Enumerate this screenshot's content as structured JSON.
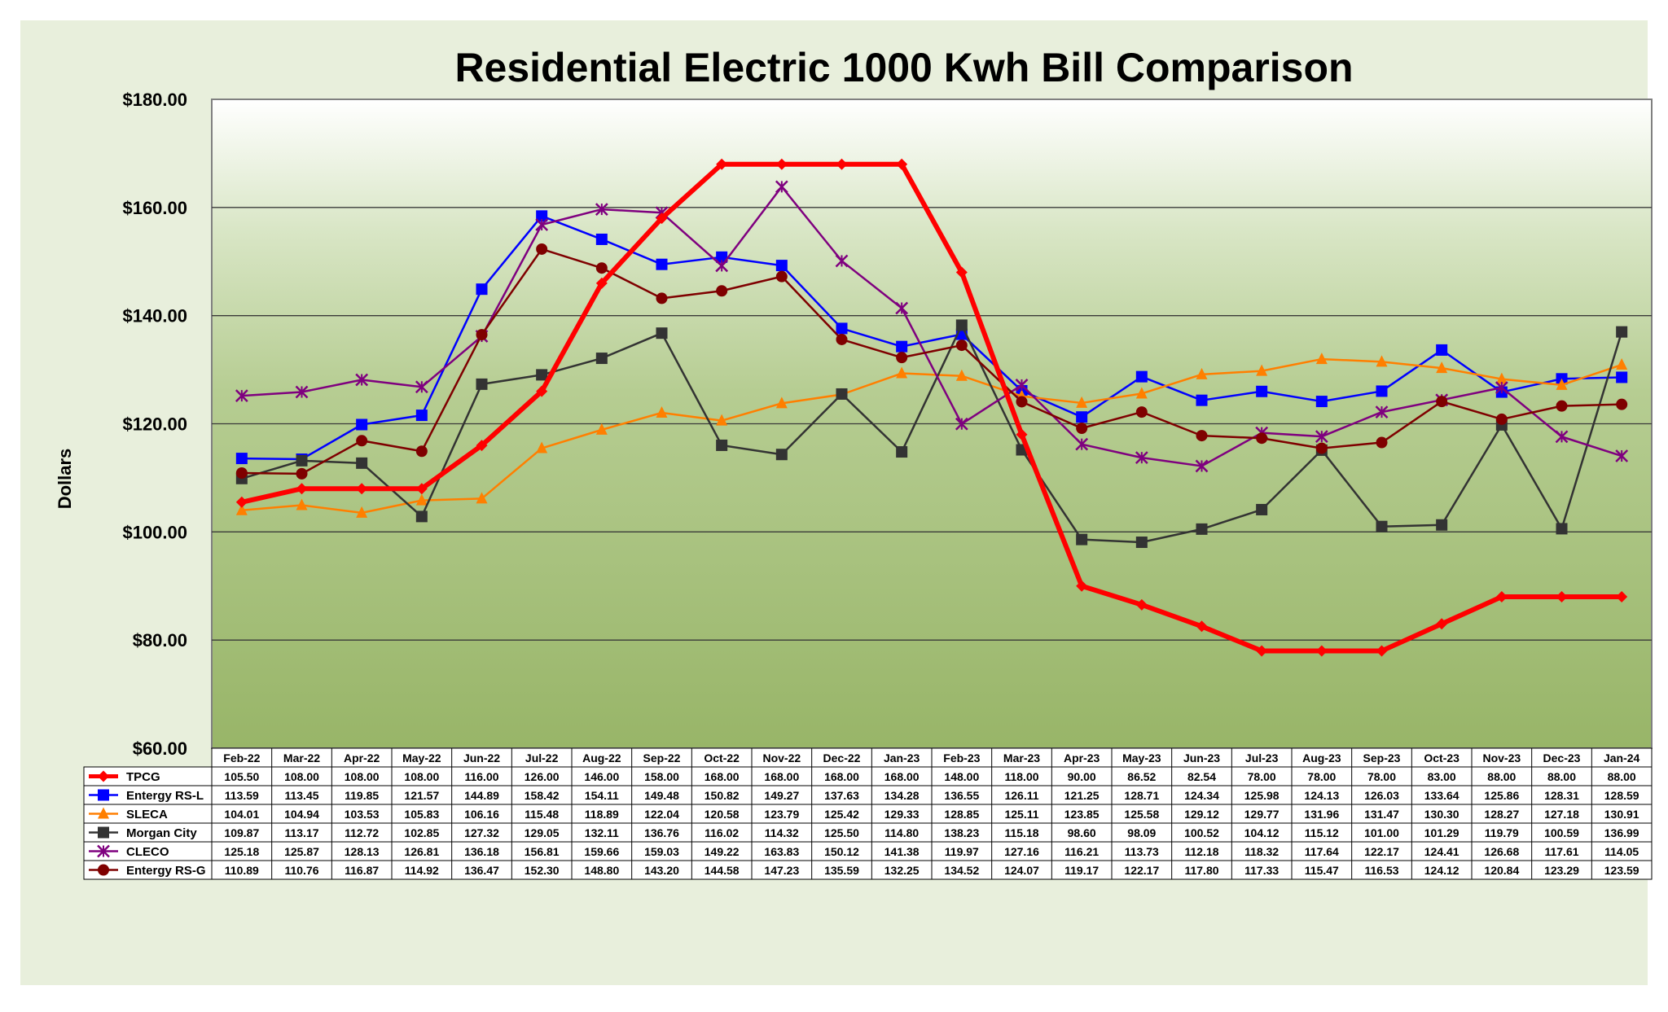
{
  "chart_data": {
    "type": "line",
    "title": "Residential Electric 1000 Kwh Bill Comparison",
    "ylabel": "Dollars",
    "xlabel": "",
    "ylim": [
      60,
      180
    ],
    "yticks": [
      "$60.00",
      "$80.00",
      "$100.00",
      "$120.00",
      "$140.00",
      "$160.00",
      "$180.00"
    ],
    "grid": true,
    "categories": [
      "Feb-22",
      "Mar-22",
      "Apr-22",
      "May-22",
      "Jun-22",
      "Jul-22",
      "Aug-22",
      "Sep-22",
      "Oct-22",
      "Nov-22",
      "Dec-22",
      "Jan-23",
      "Feb-23",
      "Mar-23",
      "Apr-23",
      "May-23",
      "Jun-23",
      "Jul-23",
      "Aug-23",
      "Sep-23",
      "Oct-23",
      "Nov-23",
      "Dec-23",
      "Jan-24"
    ],
    "series": [
      {
        "name": "TPCG",
        "color": "#ff0000",
        "marker": "diamond",
        "values": [
          105.5,
          108.0,
          108.0,
          108.0,
          116.0,
          126.0,
          146.0,
          158.0,
          168.0,
          168.0,
          168.0,
          168.0,
          148.0,
          118.0,
          90.0,
          86.52,
          82.54,
          78.0,
          78.0,
          78.0,
          83.0,
          88.0,
          88.0,
          88.0
        ],
        "labels": [
          "105.50",
          "108.00",
          "108.00",
          "108.00",
          "116.00",
          "126.00",
          "146.00",
          "158.00",
          "168.00",
          "168.00",
          "168.00",
          "168.00",
          "148.00",
          "118.00",
          "90.00",
          "86.52",
          "82.54",
          "78.00",
          "78.00",
          "78.00",
          "83.00",
          "88.00",
          "88.00",
          "88.00"
        ]
      },
      {
        "name": "Entergy RS-L",
        "color": "#0000ff",
        "marker": "square",
        "values": [
          113.59,
          113.45,
          119.85,
          121.57,
          144.89,
          158.42,
          154.11,
          149.48,
          150.82,
          149.27,
          137.63,
          134.28,
          136.55,
          126.11,
          121.25,
          128.71,
          124.34,
          125.98,
          124.13,
          126.03,
          133.64,
          125.86,
          128.31,
          128.59
        ],
        "labels": [
          "113.59",
          "113.45",
          "119.85",
          "121.57",
          "144.89",
          "158.42",
          "154.11",
          "149.48",
          "150.82",
          "149.27",
          "137.63",
          "134.28",
          "136.55",
          "126.11",
          "121.25",
          "128.71",
          "124.34",
          "125.98",
          "124.13",
          "126.03",
          "133.64",
          "125.86",
          "128.31",
          "128.59"
        ]
      },
      {
        "name": "SLECA",
        "color": "#ff7f00",
        "marker": "triangle",
        "values": [
          104.01,
          104.94,
          103.53,
          105.83,
          106.16,
          115.48,
          118.89,
          122.04,
          120.58,
          123.79,
          125.42,
          129.33,
          128.85,
          125.11,
          123.85,
          125.58,
          129.12,
          129.77,
          131.96,
          131.47,
          130.3,
          128.27,
          127.18,
          130.91
        ],
        "labels": [
          "104.01",
          "104.94",
          "103.53",
          "105.83",
          "106.16",
          "115.48",
          "118.89",
          "122.04",
          "120.58",
          "123.79",
          "125.42",
          "129.33",
          "128.85",
          "125.11",
          "123.85",
          "125.58",
          "129.12",
          "129.77",
          "131.96",
          "131.47",
          "130.30",
          "128.27",
          "127.18",
          "130.91"
        ]
      },
      {
        "name": "Morgan City",
        "color": "#333333",
        "marker": "square",
        "values": [
          109.87,
          113.17,
          112.72,
          102.85,
          127.32,
          129.05,
          132.11,
          136.76,
          116.02,
          114.32,
          125.5,
          114.8,
          138.23,
          115.18,
          98.6,
          98.09,
          100.52,
          104.12,
          115.12,
          101.0,
          101.29,
          119.79,
          100.59,
          136.99
        ],
        "labels": [
          "109.87",
          "113.17",
          "112.72",
          "102.85",
          "127.32",
          "129.05",
          "132.11",
          "136.76",
          "116.02",
          "114.32",
          "125.50",
          "114.80",
          "138.23",
          "115.18",
          "98.60",
          "98.09",
          "100.52",
          "104.12",
          "115.12",
          "101.00",
          "101.29",
          "119.79",
          "100.59",
          "136.99"
        ]
      },
      {
        "name": "CLECO",
        "color": "#7f007f",
        "marker": "x",
        "values": [
          125.18,
          125.87,
          128.13,
          126.81,
          136.18,
          156.81,
          159.66,
          159.03,
          149.22,
          163.83,
          150.12,
          141.38,
          119.97,
          127.16,
          116.21,
          113.73,
          112.18,
          118.32,
          117.64,
          122.17,
          124.41,
          126.68,
          117.61,
          114.05
        ],
        "labels": [
          "125.18",
          "125.87",
          "128.13",
          "126.81",
          "136.18",
          "156.81",
          "159.66",
          "159.03",
          "149.22",
          "163.83",
          "150.12",
          "141.38",
          "119.97",
          "127.16",
          "116.21",
          "113.73",
          "112.18",
          "118.32",
          "117.64",
          "122.17",
          "124.41",
          "126.68",
          "117.61",
          "114.05"
        ]
      },
      {
        "name": "Entergy RS-G",
        "color": "#7f0000",
        "marker": "circle",
        "values": [
          110.89,
          110.76,
          116.87,
          114.92,
          136.47,
          152.3,
          148.8,
          143.2,
          144.58,
          147.23,
          135.59,
          132.25,
          134.52,
          124.07,
          119.17,
          122.17,
          117.8,
          117.33,
          115.47,
          116.53,
          124.12,
          120.84,
          123.29,
          123.59
        ],
        "labels": [
          "110.89",
          "110.76",
          "116.87",
          "114.92",
          "136.47",
          "152.30",
          "148.80",
          "143.20",
          "144.58",
          "147.23",
          "135.59",
          "132.25",
          "134.52",
          "124.07",
          "119.17",
          "122.17",
          "117.80",
          "117.33",
          "115.47",
          "116.53",
          "124.12",
          "120.84",
          "123.29",
          "123.59"
        ]
      }
    ]
  }
}
